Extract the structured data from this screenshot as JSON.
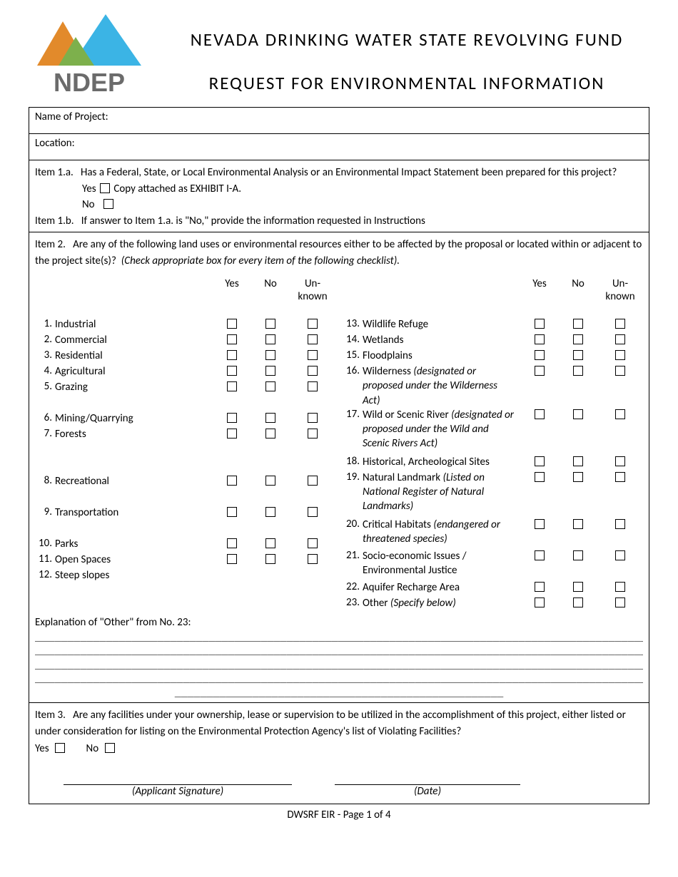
{
  "header": {
    "title1": "NEVADA DRINKING WATER STATE REVOLVING FUND",
    "title2": "REQUEST FOR ENVIRONMENTAL INFORMATION",
    "logo_text": "NDEP",
    "logo_colors": {
      "orange": "#e28a2b",
      "green": "#7db04c",
      "blue": "#3bb4e5",
      "text": "#6b6b6b"
    }
  },
  "fields": {
    "name_label": "Name of Project:",
    "location_label": "Location:"
  },
  "item1a": {
    "label": "Item 1.a.",
    "text": "Has a Federal, State, or Local Environmental Analysis or an Environmental Impact Statement been prepared for this project?",
    "yes_label": "Yes",
    "yes_suffix": "Copy attached as EXHIBIT I-A.",
    "no_label": "No"
  },
  "item1b": {
    "label": "Item 1.b.",
    "text": "If answer to Item 1.a. is \"No,\" provide the information requested in Instructions"
  },
  "item2": {
    "label": "Item 2.",
    "text_plain": "Are any of the following land uses or environmental resources either to be affected by the proposal or located within or adjacent to the project site(s)?",
    "text_italic": "(Check appropriate box for every item of the following checklist)."
  },
  "col_headers": {
    "yes": "Yes",
    "no": "No",
    "unknown_l1": "Un-",
    "unknown_l2": "known"
  },
  "checklist_left": [
    {
      "n": "1.",
      "label": "Industrial"
    },
    {
      "n": "2.",
      "label": "Commercial"
    },
    {
      "n": "3.",
      "label": "Residential"
    },
    {
      "n": "4.",
      "label": "Agricultural"
    },
    {
      "n": "5.",
      "label": "Grazing",
      "tall": true
    },
    {
      "n": "6.",
      "label": "Mining/Quarrying"
    },
    {
      "n": "7.",
      "label": "Forests",
      "tall3": true
    },
    {
      "n": "8.",
      "label": "Recreational",
      "tall": true
    },
    {
      "n": "9.",
      "label": "Transportation",
      "tall": true
    },
    {
      "n": "10.",
      "label": "Parks"
    },
    {
      "n": "11.",
      "label": "Open Spaces"
    },
    {
      "n": "12.",
      "label": "Steep slopes"
    }
  ],
  "checklist_right": [
    {
      "n": "13.",
      "label": "Wildlife Refuge"
    },
    {
      "n": "14.",
      "label": "Wetlands"
    },
    {
      "n": "15.",
      "label": "Floodplains"
    },
    {
      "n": "16.",
      "label": "Wilderness ",
      "italic": "(designated or proposed under the Wilderness Act)",
      "tall": true
    },
    {
      "n": "17.",
      "label": "Wild or Scenic River ",
      "italic": "(designated or proposed under the Wild and Scenic Rivers Act)",
      "tall3": true
    },
    {
      "n": "18.",
      "label": "Historical, Archeological Sites"
    },
    {
      "n": "19.",
      "label": "Natural Landmark ",
      "italic": "(Listed on National Register of Natural Landmarks)",
      "tall3": true
    },
    {
      "n": "20.",
      "label": "Critical Habitats ",
      "italic": "(endangered or threatened species)",
      "tall": true
    },
    {
      "n": "21.",
      "label": "Socio-economic Issues / Environmental Justice",
      "tall": true
    },
    {
      "n": "22.",
      "label": "Aquifer Recharge Area"
    },
    {
      "n": "23.",
      "label": "Other ",
      "italic": "(Specify below)"
    }
  ],
  "explanation_label": "Explanation of \"Other\" from No. 23:",
  "item3": {
    "label": "Item 3.",
    "text": "Are any facilities under your ownership, lease or supervision to be utilized in the accomplishment of this project, either listed or under consideration for listing on the Environmental Protection Agency's list of Violating Facilities?",
    "yes": "Yes",
    "no": "No"
  },
  "signature": {
    "applicant": "(Applicant Signature)",
    "date": "(Date)"
  },
  "footer": "DWSRF EIR - Page 1 of 4",
  "dash_line": "___________________________________________________________________________________________________",
  "dash_half": "___________________________________________________"
}
